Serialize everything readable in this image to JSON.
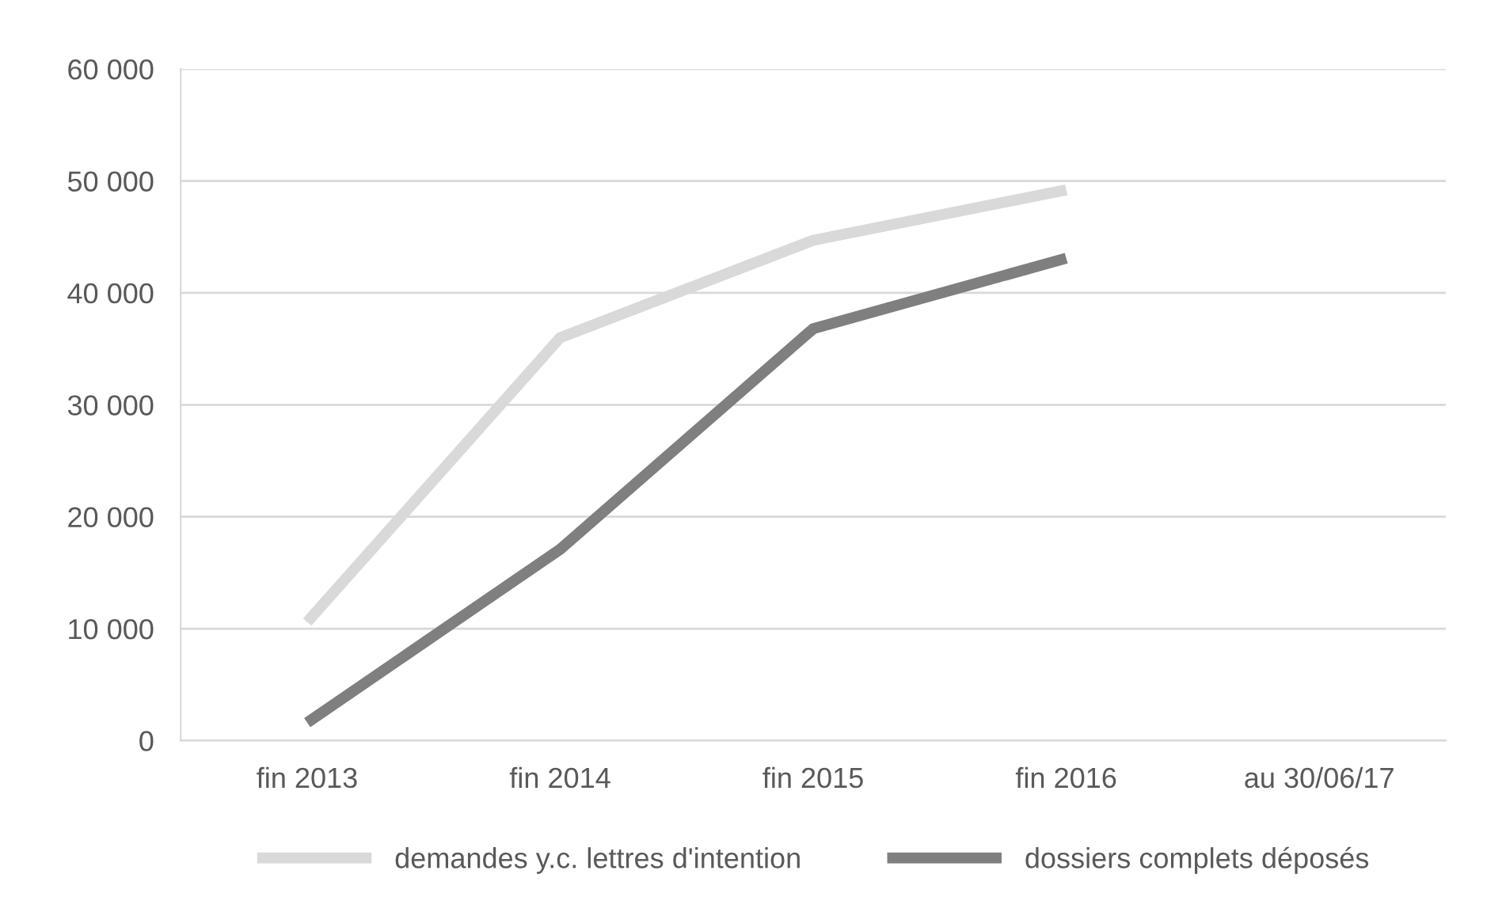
{
  "chart_data": {
    "type": "line",
    "categories": [
      "fin 2013",
      "fin 2014",
      "fin 2015",
      "fin 2016",
      "au 30/06/17"
    ],
    "series": [
      {
        "name": "demandes y.c. lettres d'intention",
        "color": "#d9d9d9",
        "values": [
          10600,
          36000,
          44700,
          49200,
          null
        ]
      },
      {
        "name": "dossiers complets déposés",
        "color": "#7f7f7f",
        "values": [
          1600,
          17100,
          36800,
          43100,
          null
        ]
      }
    ],
    "ylim": [
      0,
      60000
    ],
    "yticks": [
      {
        "value": 0,
        "label": "0"
      },
      {
        "value": 10000,
        "label": "10 000"
      },
      {
        "value": 20000,
        "label": "20 000"
      },
      {
        "value": 30000,
        "label": "30 000"
      },
      {
        "value": 40000,
        "label": "40 000"
      },
      {
        "value": 50000,
        "label": "50 000"
      },
      {
        "value": 60000,
        "label": "60 000"
      }
    ],
    "grid": "y",
    "legend": "bottom",
    "marker": "none",
    "line_style": "solid"
  }
}
